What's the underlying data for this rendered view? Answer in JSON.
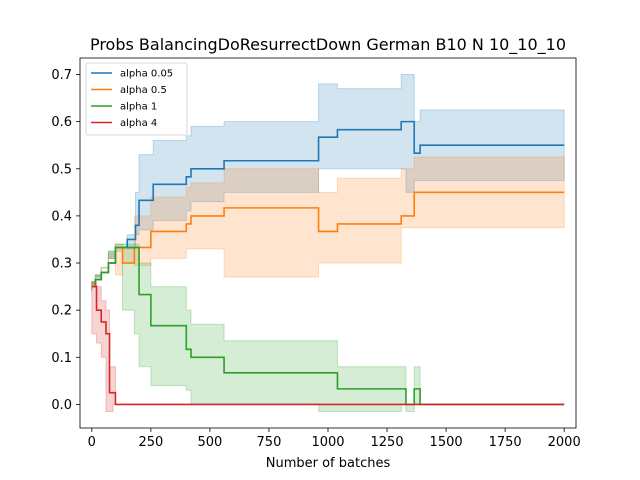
{
  "chart_data": {
    "type": "line",
    "title": "Probs BalancingDoResurrectDown German B10 N 10_10_10",
    "xlabel": "Number of batches",
    "ylabel": "",
    "xlim": [
      -50,
      2050
    ],
    "ylim": [
      -0.05,
      0.735
    ],
    "xticks": [
      0,
      250,
      500,
      750,
      1000,
      1250,
      1500,
      1750,
      2000
    ],
    "yticks": [
      0.0,
      0.1,
      0.2,
      0.3,
      0.4,
      0.5,
      0.6,
      0.7
    ],
    "xtick_labels": [
      "0",
      "250",
      "500",
      "750",
      "1000",
      "1250",
      "1500",
      "1750",
      "2000"
    ],
    "ytick_labels": [
      "0.0",
      "0.1",
      "0.2",
      "0.3",
      "0.4",
      "0.5",
      "0.6",
      "0.7"
    ],
    "legend": {
      "placement": "top-left"
    },
    "series": [
      {
        "name": "alpha 0.05",
        "color": "#1f77b4",
        "fill_color": "#1f77b4",
        "x": [
          0,
          15,
          40,
          70,
          100,
          150,
          185,
          200,
          260,
          400,
          420,
          560,
          960,
          1040,
          1170,
          1310,
          1330,
          1365,
          1390,
          2000
        ],
        "y": [
          0.25,
          0.265,
          0.28,
          0.3,
          0.333,
          0.35,
          0.38,
          0.433,
          0.467,
          0.483,
          0.5,
          0.517,
          0.567,
          0.583,
          0.583,
          0.6,
          0.6,
          0.533,
          0.55,
          0.55
        ],
        "upper": [
          0.26,
          0.275,
          0.29,
          0.31,
          0.34,
          0.36,
          0.45,
          0.53,
          0.56,
          0.57,
          0.59,
          0.6,
          0.68,
          0.67,
          0.67,
          0.7,
          0.7,
          0.6,
          0.625,
          0.625
        ],
        "lower": [
          0.24,
          0.255,
          0.27,
          0.29,
          0.325,
          0.34,
          0.33,
          0.36,
          0.37,
          0.39,
          0.41,
          0.43,
          0.45,
          0.5,
          0.5,
          0.5,
          0.5,
          0.45,
          0.475,
          0.475
        ]
      },
      {
        "name": "alpha 0.5",
        "color": "#ff7f0e",
        "fill_color": "#ff7f0e",
        "x": [
          0,
          15,
          40,
          70,
          100,
          130,
          180,
          250,
          400,
          420,
          560,
          960,
          1040,
          1170,
          1310,
          1365,
          2000
        ],
        "y": [
          0.25,
          0.265,
          0.28,
          0.3,
          0.333,
          0.3,
          0.333,
          0.367,
          0.383,
          0.4,
          0.417,
          0.367,
          0.383,
          0.383,
          0.4,
          0.45,
          0.45
        ],
        "upper": [
          0.26,
          0.275,
          0.29,
          0.31,
          0.34,
          0.33,
          0.4,
          0.44,
          0.46,
          0.47,
          0.5,
          0.45,
          0.48,
          0.48,
          0.5,
          0.525,
          0.525
        ],
        "lower": [
          0.24,
          0.255,
          0.27,
          0.29,
          0.32,
          0.275,
          0.3,
          0.295,
          0.31,
          0.33,
          0.33,
          0.27,
          0.3,
          0.3,
          0.3,
          0.375,
          0.375
        ]
      },
      {
        "name": "alpha 1",
        "color": "#2ca02c",
        "fill_color": "#2ca02c",
        "x": [
          0,
          15,
          40,
          70,
          100,
          130,
          180,
          200,
          250,
          400,
          420,
          560,
          960,
          1040,
          1170,
          1310,
          1330,
          1365,
          1390,
          2000
        ],
        "y": [
          0.25,
          0.265,
          0.28,
          0.3,
          0.333,
          0.333,
          0.333,
          0.233,
          0.167,
          0.117,
          0.1,
          0.067,
          0.067,
          0.033,
          0.033,
          0.033,
          0.0,
          0.033,
          0.0,
          0.0
        ],
        "upper": [
          0.26,
          0.275,
          0.29,
          0.31,
          0.34,
          0.34,
          0.34,
          0.3,
          0.25,
          0.2,
          0.17,
          0.135,
          0.135,
          0.08,
          0.08,
          0.08,
          0.0,
          0.08,
          0.0,
          0.0
        ],
        "lower": [
          0.24,
          0.255,
          0.27,
          0.29,
          0.325,
          0.325,
          0.2,
          0.15,
          0.08,
          0.04,
          0.03,
          0.0,
          0.0,
          -0.015,
          -0.015,
          -0.015,
          0.0,
          -0.015,
          0.0,
          0.0
        ]
      },
      {
        "name": "alpha 4",
        "color": "#d62728",
        "fill_color": "#d62728",
        "x": [
          0,
          20,
          40,
          60,
          75,
          90,
          100,
          2000
        ],
        "y": [
          0.25,
          0.2,
          0.175,
          0.15,
          0.025,
          0.025,
          0.0,
          0.0
        ],
        "upper": [
          0.26,
          0.25,
          0.22,
          0.2,
          0.08,
          0.08,
          0.0,
          0.0
        ],
        "lower": [
          0.24,
          0.15,
          0.13,
          0.1,
          -0.015,
          -0.015,
          0.0,
          0.0
        ]
      }
    ]
  }
}
